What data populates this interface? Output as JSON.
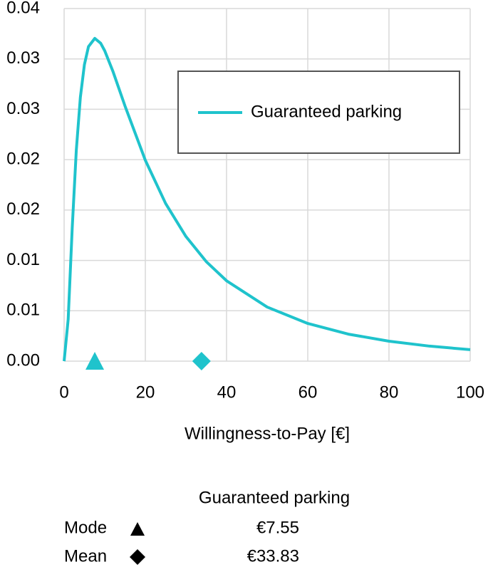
{
  "chart_data": {
    "type": "line",
    "x_label": "Willingness-to-Pay [€]",
    "x": [
      0,
      1,
      2,
      3,
      4,
      5,
      6,
      7.55,
      9,
      10,
      12,
      15,
      20,
      25,
      30,
      35,
      40,
      50,
      60,
      70,
      80,
      90,
      100
    ],
    "series": [
      {
        "name": "Guaranteed parking",
        "color": "#1fc3cc",
        "values": [
          0,
          0.00415,
          0.01326,
          0.02093,
          0.02619,
          0.02944,
          0.03122,
          0.03204,
          0.03156,
          0.03081,
          0.02879,
          0.02532,
          0.01994,
          0.01565,
          0.01237,
          0.00988,
          0.00798,
          0.00537,
          0.00374,
          0.00268,
          0.00198,
          0.00149,
          0.00114
        ]
      }
    ],
    "markers": [
      {
        "shape": "triangle",
        "x": 7.55,
        "y": 0
      },
      {
        "shape": "diamond",
        "x": 33.83,
        "y": 0
      }
    ],
    "xlim": [
      0,
      100
    ],
    "xticks": [
      0,
      20,
      40,
      60,
      80,
      100
    ],
    "ylim": [
      0,
      0.035
    ],
    "yticks": [
      {
        "value": 0,
        "label": "0.00"
      },
      {
        "value": 0.005,
        "label": "0.01"
      },
      {
        "value": 0.01,
        "label": "0.01"
      },
      {
        "value": 0.015,
        "label": "0.02"
      },
      {
        "value": 0.02,
        "label": "0.02"
      },
      {
        "value": 0.025,
        "label": "0.03"
      },
      {
        "value": 0.03,
        "label": "0.03"
      },
      {
        "value": 0.035,
        "label": "0.04"
      }
    ],
    "grid": true,
    "legend": "upper right"
  },
  "table": {
    "header": "Guaranteed parking",
    "rows": [
      [
        "Mode",
        "€7.55"
      ],
      [
        "Mean",
        "€33.83"
      ]
    ]
  }
}
